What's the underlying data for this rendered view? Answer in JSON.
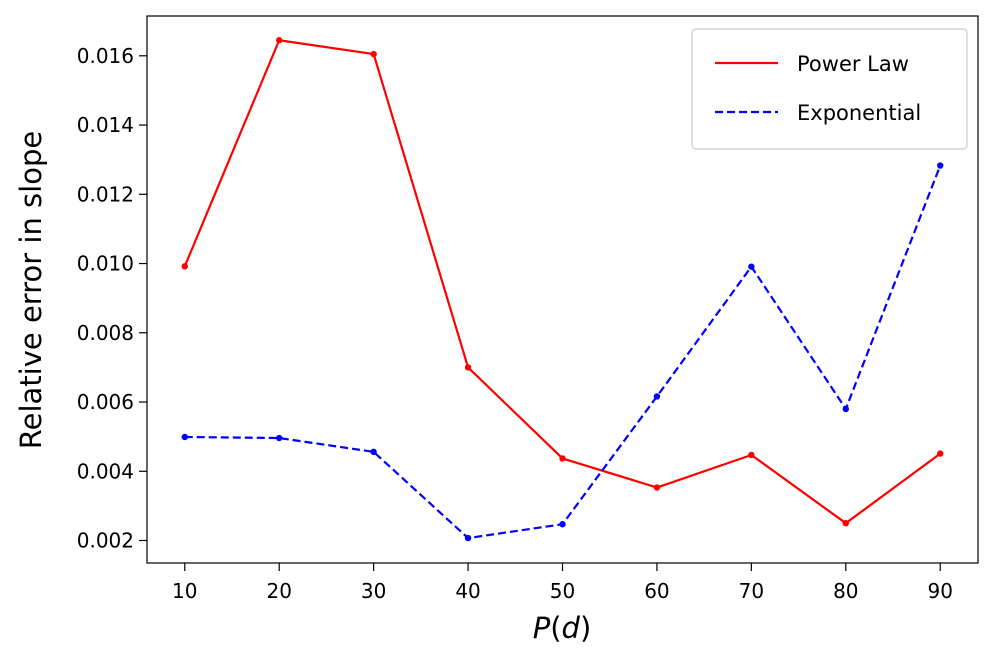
{
  "chart_data": {
    "type": "line",
    "title": "",
    "xlabel": "P(d)",
    "xlabel_parts": {
      "main": "P",
      "open": "(",
      "var": "d",
      "close": ")"
    },
    "ylabel": "Relative error in slope",
    "x": [
      10,
      20,
      30,
      40,
      50,
      60,
      70,
      80,
      90
    ],
    "xticks": [
      "10",
      "20",
      "30",
      "40",
      "50",
      "60",
      "70",
      "80",
      "90"
    ],
    "yticks": [
      "0.002",
      "0.004",
      "0.006",
      "0.008",
      "0.010",
      "0.012",
      "0.014",
      "0.016"
    ],
    "ytick_values": [
      0.002,
      0.004,
      0.006,
      0.008,
      0.01,
      0.012,
      0.014,
      0.016
    ],
    "xlim": [
      6,
      94
    ],
    "ylim": [
      0.00135,
      0.01715
    ],
    "grid": false,
    "legend_position": "top-right",
    "series": [
      {
        "name": "Power Law",
        "color": "#ff0000",
        "style": "solid",
        "values": [
          0.00992,
          0.01645,
          0.01605,
          0.007,
          0.00437,
          0.00353,
          0.00447,
          0.0025,
          0.00451
        ]
      },
      {
        "name": "Exponential",
        "color": "#0000ff",
        "style": "dashed",
        "values": [
          0.00499,
          0.00496,
          0.00456,
          0.00207,
          0.00247,
          0.00616,
          0.00991,
          0.0058,
          0.01283
        ]
      }
    ]
  }
}
